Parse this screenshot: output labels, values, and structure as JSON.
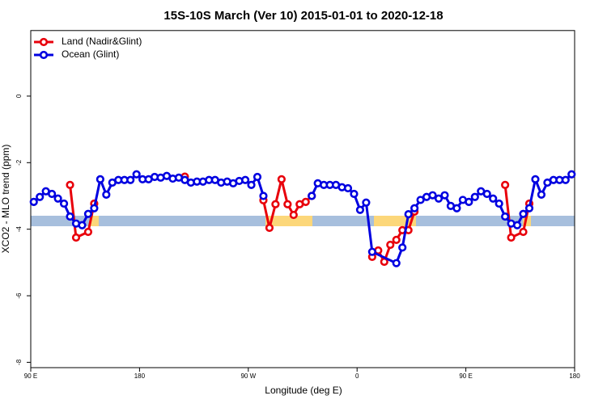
{
  "chart_data": {
    "type": "line",
    "title": "15S-10S March (Ver 10)   2015-01-01 to 2020-12-18",
    "x_label": "Longitude (deg E)",
    "y_label": "XCO2 - MLO trend (ppm)",
    "xlim": [
      90,
      540
    ],
    "ylim": [
      -8.16,
      1.97
    ],
    "xticks": [
      {
        "value": 90,
        "label": "90 E"
      },
      180,
      {
        "value": 270,
        "label": "90 W"
      },
      {
        "value": 360,
        "label": "0"
      },
      {
        "value": 450,
        "label": "90 E"
      },
      {
        "value": 540,
        "label": "180"
      }
    ],
    "yticks": [
      0,
      -2,
      -4,
      -6,
      -8
    ],
    "legend": "top-left",
    "series": [
      {
        "name": "Land (Nadir&Glint)",
        "color": "#e8000b",
        "x": [
          122.5,
          127.5,
          137.5,
          142.5,
          217.5,
          282.5,
          287.5,
          292.5,
          297.5,
          302.5,
          307.5,
          312.5,
          317.5,
          322.5,
          372.5,
          377.5,
          382.5,
          387.5,
          392.5,
          397.5,
          402.5,
          407.5,
          482.5,
          487.5,
          497.5,
          502.5
        ],
        "values": [
          -2.67,
          -4.25,
          -4.08,
          -3.23,
          -2.42,
          -3.13,
          -3.96,
          -3.25,
          -2.5,
          -3.25,
          -3.57,
          -3.25,
          -3.18,
          -3.0,
          -4.83,
          -4.64,
          -4.98,
          -4.47,
          -4.32,
          -4.03,
          -4.03,
          -3.47,
          -2.67,
          -4.25,
          -4.08,
          -3.23
        ]
      },
      {
        "name": "Ocean (Glint)",
        "color": "#0000e0",
        "x": [
          92.5,
          97.5,
          102.5,
          107.5,
          112.5,
          117.5,
          122.5,
          127.5,
          132.5,
          137.5,
          142.5,
          147.5,
          152.5,
          157.5,
          162.5,
          167.5,
          172.5,
          177.5,
          182.5,
          187.5,
          192.5,
          197.5,
          202.5,
          207.5,
          212.5,
          217.5,
          222.5,
          227.5,
          232.5,
          237.5,
          242.5,
          247.5,
          252.5,
          257.5,
          262.5,
          267.5,
          272.5,
          277.5,
          282.5,
          322.5,
          327.5,
          332.5,
          337.5,
          342.5,
          347.5,
          352.5,
          357.5,
          362.5,
          367.5,
          372.5,
          392.5,
          397.5,
          402.5,
          407.5,
          412.5,
          417.5,
          422.5,
          427.5,
          432.5,
          437.5,
          442.5,
          447.5,
          452.5,
          457.5,
          462.5,
          467.5,
          472.5,
          477.5,
          482.5,
          487.5,
          492.5,
          497.5,
          502.5,
          507.5,
          512.5,
          517.5,
          522.5,
          527.5,
          532.5,
          537.5
        ],
        "values": [
          -3.18,
          -3.03,
          -2.86,
          -2.94,
          -3.08,
          -3.23,
          -3.62,
          -3.83,
          -3.88,
          -3.54,
          -3.37,
          -2.5,
          -2.96,
          -2.6,
          -2.52,
          -2.52,
          -2.52,
          -2.35,
          -2.5,
          -2.5,
          -2.43,
          -2.45,
          -2.4,
          -2.48,
          -2.45,
          -2.52,
          -2.6,
          -2.57,
          -2.57,
          -2.52,
          -2.52,
          -2.6,
          -2.57,
          -2.62,
          -2.55,
          -2.52,
          -2.67,
          -2.43,
          -3.0,
          -3.0,
          -2.62,
          -2.67,
          -2.67,
          -2.67,
          -2.74,
          -2.77,
          -2.94,
          -3.42,
          -3.2,
          -4.68,
          -5.02,
          -4.55,
          -3.55,
          -3.37,
          -3.12,
          -3.03,
          -2.98,
          -3.08,
          -2.98,
          -3.3,
          -3.37,
          -3.12,
          -3.18,
          -3.03,
          -2.86,
          -2.94,
          -3.08,
          -3.23,
          -3.62,
          -3.83,
          -3.88,
          -3.54,
          -3.37,
          -2.5,
          -2.96,
          -2.6,
          -2.52,
          -2.52,
          -2.52,
          -2.35
        ]
      }
    ]
  }
}
